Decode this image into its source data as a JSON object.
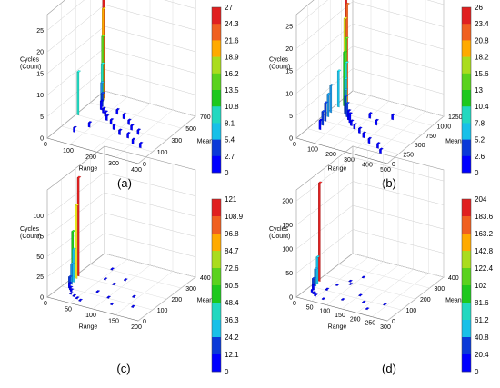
{
  "figure": {
    "panels": [
      {
        "caption": "(a)",
        "zlabel": [
          "Cycles",
          "(Count)"
        ],
        "xlabel": "Range",
        "ylabel": "Mean",
        "zticks": [
          "0",
          "5",
          "10",
          "15",
          "20",
          "25"
        ],
        "xticks": [
          "0",
          "100",
          "200",
          "300",
          "400"
        ],
        "yticks": [
          "0",
          "100",
          "300",
          "500",
          "700"
        ],
        "colorbar": [
          "27",
          "24.3",
          "21.6",
          "18.9",
          "16.2",
          "13.5",
          "10.8",
          "8.1",
          "5.4",
          "2.7",
          "0"
        ]
      },
      {
        "caption": "(b)",
        "zlabel": [
          "Cycles",
          "(Count)"
        ],
        "xlabel": "Range",
        "ylabel": "Mean",
        "zticks": [
          "0",
          "5",
          "10",
          "15",
          "20",
          "25"
        ],
        "xticks": [
          "0",
          "100",
          "200",
          "300",
          "400",
          "500"
        ],
        "yticks": [
          "0",
          "250",
          "500",
          "750",
          "1000",
          "1250"
        ],
        "colorbar": [
          "26",
          "23.4",
          "20.8",
          "18.2",
          "15.6",
          "13",
          "10.4",
          "7.8",
          "5.2",
          "2.6",
          "0"
        ]
      },
      {
        "caption": "(c)",
        "zlabel": [
          "Cycles",
          "(Count)"
        ],
        "xlabel": "Range",
        "ylabel": "Mean",
        "zticks": [
          "0",
          "25",
          "50",
          "75",
          "100"
        ],
        "xticks": [
          "0",
          "50",
          "100",
          "150",
          "200"
        ],
        "yticks": [
          "0",
          "100",
          "200",
          "300",
          "400"
        ],
        "colorbar": [
          "121",
          "108.9",
          "96.8",
          "84.7",
          "72.6",
          "60.5",
          "48.4",
          "36.3",
          "24.2",
          "12.1",
          "0"
        ]
      },
      {
        "caption": "(d)",
        "zlabel": [
          "Cycles",
          "(Count)"
        ],
        "xlabel": "Range",
        "ylabel": "Mean",
        "zticks": [
          "0",
          "50",
          "100",
          "150",
          "200"
        ],
        "xticks": [
          "0",
          "50",
          "100",
          "150",
          "200",
          "250",
          "300"
        ],
        "yticks": [
          "0",
          "100",
          "200",
          "300",
          "400"
        ],
        "colorbar": [
          "204",
          "183.6",
          "163.2",
          "142.8",
          "122.4",
          "102",
          "81.6",
          "61.2",
          "40.8",
          "20.4",
          "0"
        ]
      }
    ],
    "colormap": [
      "#0000ff",
      "#0a39d8",
      "#1b8ede",
      "#18c0e8",
      "#22d8c0",
      "#1ec81e",
      "#5ad21e",
      "#aadc1e",
      "#e8e820",
      "#ffaa00",
      "#f06020",
      "#e02020"
    ]
  },
  "chart_data": [
    {
      "type": "bar3d",
      "title": "(a)",
      "xlabel": "Range",
      "ylabel": "Mean",
      "zlabel": "Cycles (Count)",
      "xlim": [
        0,
        400
      ],
      "ylim": [
        0,
        700
      ],
      "zlim": [
        0,
        27
      ],
      "bars": [
        {
          "x": 5,
          "y": 350,
          "z": 10
        },
        {
          "x": 20,
          "y": 620,
          "z": 27
        },
        {
          "x": 25,
          "y": 600,
          "z": 21
        },
        {
          "x": 30,
          "y": 580,
          "z": 15
        },
        {
          "x": 35,
          "y": 560,
          "z": 9
        },
        {
          "x": 40,
          "y": 540,
          "z": 5
        },
        {
          "x": 50,
          "y": 520,
          "z": 3
        },
        {
          "x": 60,
          "y": 480,
          "z": 2
        },
        {
          "x": 80,
          "y": 450,
          "z": 1
        },
        {
          "x": 100,
          "y": 420,
          "z": 1
        },
        {
          "x": 120,
          "y": 380,
          "z": 1
        },
        {
          "x": 150,
          "y": 350,
          "z": 1
        },
        {
          "x": 180,
          "y": 300,
          "z": 1
        },
        {
          "x": 220,
          "y": 260,
          "z": 1
        },
        {
          "x": 260,
          "y": 250,
          "z": 1
        },
        {
          "x": 300,
          "y": 200,
          "z": 1
        },
        {
          "x": 340,
          "y": 180,
          "z": 1
        },
        {
          "x": 60,
          "y": 150,
          "z": 1
        },
        {
          "x": 90,
          "y": 250,
          "z": 1
        },
        {
          "x": 130,
          "y": 480,
          "z": 1
        },
        {
          "x": 170,
          "y": 450,
          "z": 1
        },
        {
          "x": 210,
          "y": 400,
          "z": 1
        },
        {
          "x": 240,
          "y": 350,
          "z": 1
        },
        {
          "x": 280,
          "y": 320,
          "z": 1
        }
      ]
    },
    {
      "type": "bar3d",
      "title": "(b)",
      "xlabel": "Range",
      "ylabel": "Mean",
      "zlabel": "Cycles (Count)",
      "xlim": [
        0,
        500
      ],
      "ylim": [
        0,
        1250
      ],
      "zlim": [
        0,
        26
      ],
      "bars": [
        {
          "x": 20,
          "y": 1000,
          "z": 26
        },
        {
          "x": 30,
          "y": 980,
          "z": 22
        },
        {
          "x": 25,
          "y": 950,
          "z": 19
        },
        {
          "x": 40,
          "y": 920,
          "z": 15
        },
        {
          "x": 35,
          "y": 900,
          "z": 12
        },
        {
          "x": 50,
          "y": 880,
          "z": 10
        },
        {
          "x": 15,
          "y": 850,
          "z": 8
        },
        {
          "x": 60,
          "y": 820,
          "z": 7
        },
        {
          "x": 10,
          "y": 700,
          "z": 6
        },
        {
          "x": 70,
          "y": 780,
          "z": 5
        },
        {
          "x": 20,
          "y": 600,
          "z": 5
        },
        {
          "x": 80,
          "y": 740,
          "z": 4
        },
        {
          "x": 30,
          "y": 500,
          "z": 4
        },
        {
          "x": 100,
          "y": 700,
          "z": 3
        },
        {
          "x": 40,
          "y": 400,
          "z": 3
        },
        {
          "x": 120,
          "y": 650,
          "z": 2
        },
        {
          "x": 50,
          "y": 300,
          "z": 2
        },
        {
          "x": 140,
          "y": 600,
          "z": 2
        },
        {
          "x": 160,
          "y": 550,
          "z": 1
        },
        {
          "x": 190,
          "y": 500,
          "z": 1
        },
        {
          "x": 230,
          "y": 450,
          "z": 1
        },
        {
          "x": 270,
          "y": 380,
          "z": 1
        },
        {
          "x": 320,
          "y": 300,
          "z": 1
        },
        {
          "x": 380,
          "y": 250,
          "z": 1
        },
        {
          "x": 420,
          "y": 150,
          "z": 1
        },
        {
          "x": 200,
          "y": 800,
          "z": 1
        },
        {
          "x": 260,
          "y": 700,
          "z": 1
        },
        {
          "x": 300,
          "y": 900,
          "z": 1
        }
      ]
    },
    {
      "type": "bar3d",
      "title": "(c)",
      "xlabel": "Range",
      "ylabel": "Mean",
      "zlabel": "Cycles (Count)",
      "xlim": [
        0,
        200
      ],
      "ylim": [
        0,
        400
      ],
      "zlim": [
        0,
        121
      ],
      "bars": [
        {
          "x": 3,
          "y": 200,
          "z": 121
        },
        {
          "x": 5,
          "y": 180,
          "z": 90
        },
        {
          "x": 3,
          "y": 160,
          "z": 60
        },
        {
          "x": 8,
          "y": 150,
          "z": 40
        },
        {
          "x": 10,
          "y": 130,
          "z": 25
        },
        {
          "x": 12,
          "y": 110,
          "z": 12
        },
        {
          "x": 15,
          "y": 100,
          "z": 6
        },
        {
          "x": 20,
          "y": 90,
          "z": 3
        },
        {
          "x": 25,
          "y": 80,
          "z": 2
        },
        {
          "x": 30,
          "y": 60,
          "z": 1
        },
        {
          "x": 40,
          "y": 50,
          "z": 1
        },
        {
          "x": 50,
          "y": 40,
          "z": 1
        },
        {
          "x": 60,
          "y": 30,
          "z": 1
        },
        {
          "x": 70,
          "y": 120,
          "z": 1
        },
        {
          "x": 80,
          "y": 200,
          "z": 1
        },
        {
          "x": 90,
          "y": 250,
          "z": 1
        },
        {
          "x": 100,
          "y": 100,
          "z": 1
        },
        {
          "x": 120,
          "y": 60,
          "z": 1
        },
        {
          "x": 140,
          "y": 150,
          "z": 1
        },
        {
          "x": 160,
          "y": 80,
          "z": 1
        },
        {
          "x": 45,
          "y": 300,
          "z": 1
        },
        {
          "x": 55,
          "y": 220,
          "z": 1
        }
      ]
    },
    {
      "type": "bar3d",
      "title": "(d)",
      "xlabel": "Range",
      "ylabel": "Mean",
      "zlabel": "Cycles (Count)",
      "xlim": [
        0,
        300
      ],
      "ylim": [
        0,
        400
      ],
      "zlim": [
        0,
        204
      ],
      "bars": [
        {
          "x": 3,
          "y": 150,
          "z": 204
        },
        {
          "x": 5,
          "y": 130,
          "z": 55
        },
        {
          "x": 8,
          "y": 110,
          "z": 35
        },
        {
          "x": 10,
          "y": 90,
          "z": 20
        },
        {
          "x": 15,
          "y": 80,
          "z": 10
        },
        {
          "x": 20,
          "y": 60,
          "z": 5
        },
        {
          "x": 30,
          "y": 50,
          "z": 3
        },
        {
          "x": 40,
          "y": 40,
          "z": 2
        },
        {
          "x": 50,
          "y": 100,
          "z": 2
        },
        {
          "x": 60,
          "y": 150,
          "z": 1
        },
        {
          "x": 80,
          "y": 200,
          "z": 1
        },
        {
          "x": 100,
          "y": 250,
          "z": 1
        },
        {
          "x": 120,
          "y": 60,
          "z": 1
        },
        {
          "x": 150,
          "y": 120,
          "z": 1
        },
        {
          "x": 180,
          "y": 80,
          "z": 1
        },
        {
          "x": 210,
          "y": 40,
          "z": 1
        },
        {
          "x": 240,
          "y": 100,
          "z": 1
        },
        {
          "x": 70,
          "y": 30,
          "z": 1
        },
        {
          "x": 90,
          "y": 180,
          "z": 1
        }
      ]
    }
  ]
}
